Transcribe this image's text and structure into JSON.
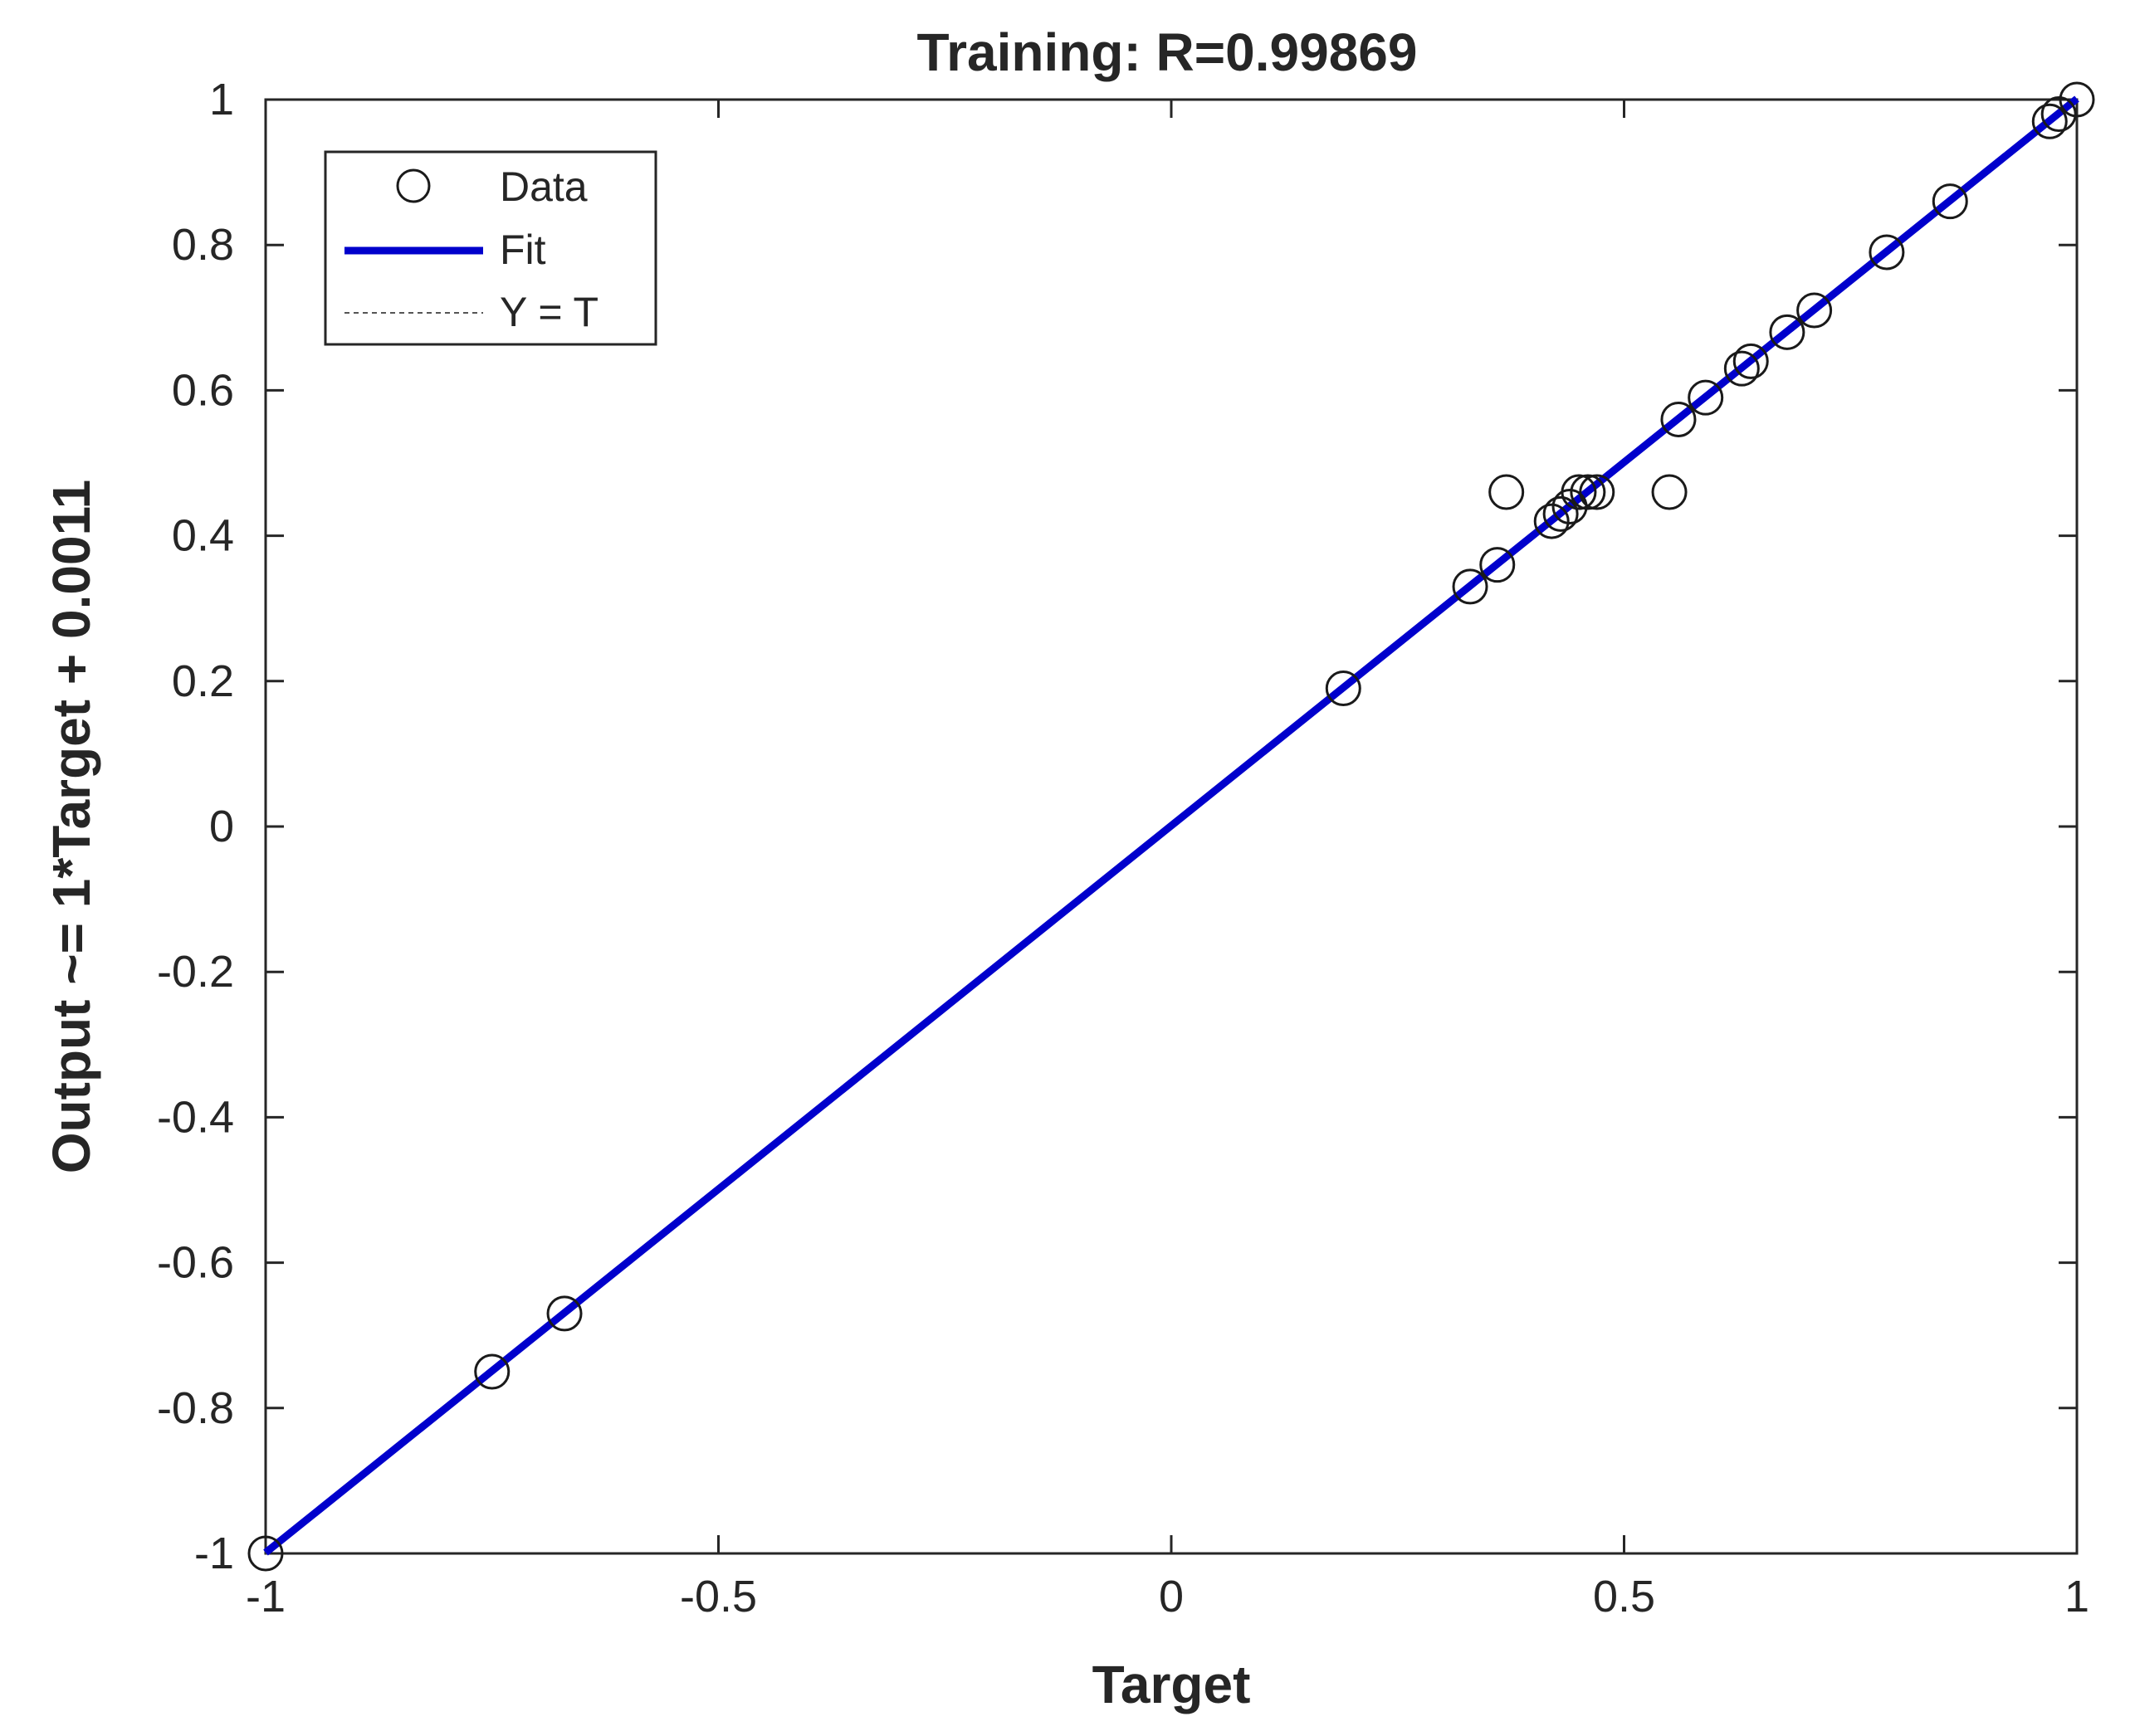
{
  "chart_data": {
    "type": "scatter",
    "title": "Training: R=0.99869",
    "xlabel": "Target",
    "ylabel": "Output ~= 1*Target + 0.0011",
    "xlim": [
      -1,
      1
    ],
    "ylim": [
      -1,
      1
    ],
    "x_ticks": [
      -1,
      -0.5,
      0,
      0.5,
      1
    ],
    "y_ticks": [
      -1,
      -0.8,
      -0.6,
      -0.4,
      -0.2,
      0,
      0.2,
      0.4,
      0.6,
      0.8,
      1
    ],
    "x_tick_labels": [
      "-1",
      "-0.5",
      "0",
      "0.5",
      "1"
    ],
    "y_tick_labels": [
      "-1",
      "-0.8",
      "-0.6",
      "-0.4",
      "-0.2",
      "0",
      "0.2",
      "0.4",
      "0.6",
      "0.8",
      "1"
    ],
    "grid": false,
    "legend_position": "top-left",
    "legend": [
      "Data",
      "Fit",
      "Y = T"
    ],
    "fit": {
      "slope": 1,
      "intercept": 0.0011,
      "color": "#0000cc"
    },
    "identity_line": {
      "style": "dotted",
      "color": "#555555"
    },
    "marker_color": "#1a1a1a",
    "data": [
      {
        "x": -1.0,
        "y": -1.0
      },
      {
        "x": -0.75,
        "y": -0.75
      },
      {
        "x": -0.67,
        "y": -0.67
      },
      {
        "x": 0.19,
        "y": 0.19
      },
      {
        "x": 0.33,
        "y": 0.33
      },
      {
        "x": 0.36,
        "y": 0.36
      },
      {
        "x": 0.37,
        "y": 0.46
      },
      {
        "x": 0.42,
        "y": 0.42
      },
      {
        "x": 0.43,
        "y": 0.43
      },
      {
        "x": 0.44,
        "y": 0.44
      },
      {
        "x": 0.45,
        "y": 0.46
      },
      {
        "x": 0.46,
        "y": 0.46
      },
      {
        "x": 0.47,
        "y": 0.46
      },
      {
        "x": 0.55,
        "y": 0.46
      },
      {
        "x": 0.56,
        "y": 0.56
      },
      {
        "x": 0.59,
        "y": 0.59
      },
      {
        "x": 0.63,
        "y": 0.63
      },
      {
        "x": 0.64,
        "y": 0.64
      },
      {
        "x": 0.68,
        "y": 0.68
      },
      {
        "x": 0.71,
        "y": 0.71
      },
      {
        "x": 0.79,
        "y": 0.79
      },
      {
        "x": 0.86,
        "y": 0.86
      },
      {
        "x": 0.97,
        "y": 0.97
      },
      {
        "x": 0.98,
        "y": 0.98
      },
      {
        "x": 1.0,
        "y": 1.0
      }
    ]
  }
}
